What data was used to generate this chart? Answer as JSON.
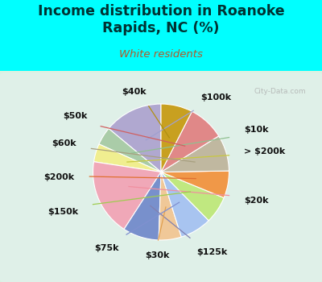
{
  "title": "Income distribution in Roanoke\nRapids, NC (%)",
  "subtitle": "White residents",
  "title_color": "#003333",
  "subtitle_color": "#b05a2a",
  "background_color": "#00ffff",
  "watermark": "City-Data.com",
  "labels": [
    "$100k",
    "$10k",
    "> $200k",
    "$20k",
    "$125k",
    "$30k",
    "$75k",
    "$150k",
    "$200k",
    "$60k",
    "$50k",
    "$40k"
  ],
  "sizes": [
    13,
    4,
    4,
    17,
    8,
    5,
    7,
    6,
    6,
    8,
    8,
    7
  ],
  "colors": [
    "#b0a8d0",
    "#aacca8",
    "#f0ee90",
    "#f0a8b8",
    "#7890cc",
    "#f0c898",
    "#a8c4f0",
    "#c0e880",
    "#f09848",
    "#c0b8a0",
    "#e08888",
    "#c8a020"
  ],
  "line_colors": [
    "#a0a0d0",
    "#90c090",
    "#c8c840",
    "#f090a0",
    "#8080b0",
    "#e0a050",
    "#8090d0",
    "#a0cc50",
    "#e07030",
    "#a8a080",
    "#d06060",
    "#b09010"
  ],
  "label_fontsize": 8,
  "startangle": 90,
  "figsize": [
    4.0,
    3.5
  ],
  "dpi": 100
}
